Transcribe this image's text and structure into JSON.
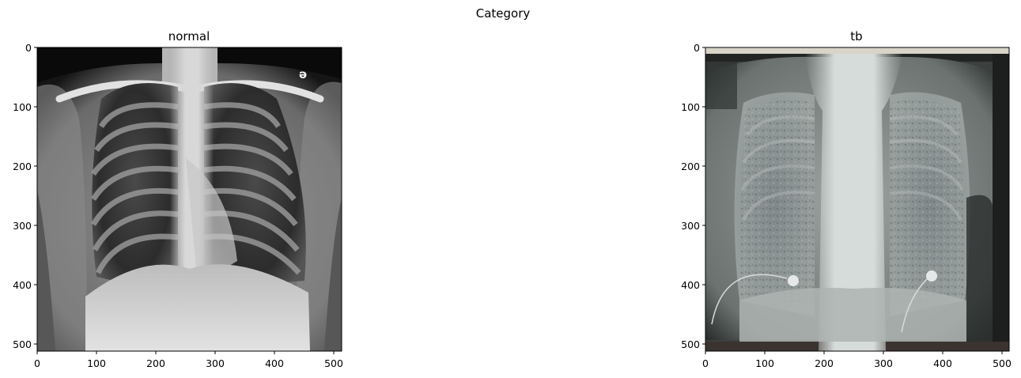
{
  "figure": {
    "suptitle": "Category",
    "panels": [
      {
        "title": "normal",
        "image_subject": "frontal chest x-ray",
        "x_ticks": [
          "0",
          "100",
          "200",
          "300",
          "400",
          "500"
        ],
        "y_ticks": [
          "0",
          "100",
          "200",
          "300",
          "400",
          "500"
        ],
        "x_range": [
          0,
          512
        ],
        "y_range": [
          512,
          0
        ]
      },
      {
        "title": "tb",
        "image_subject": "frontal chest x-ray",
        "x_ticks": [
          "0",
          "100",
          "200",
          "300",
          "400",
          "500"
        ],
        "y_ticks": [
          "0",
          "100",
          "200",
          "300",
          "400",
          "500"
        ],
        "x_range": [
          0,
          512
        ],
        "y_range": [
          512,
          0
        ]
      }
    ]
  }
}
